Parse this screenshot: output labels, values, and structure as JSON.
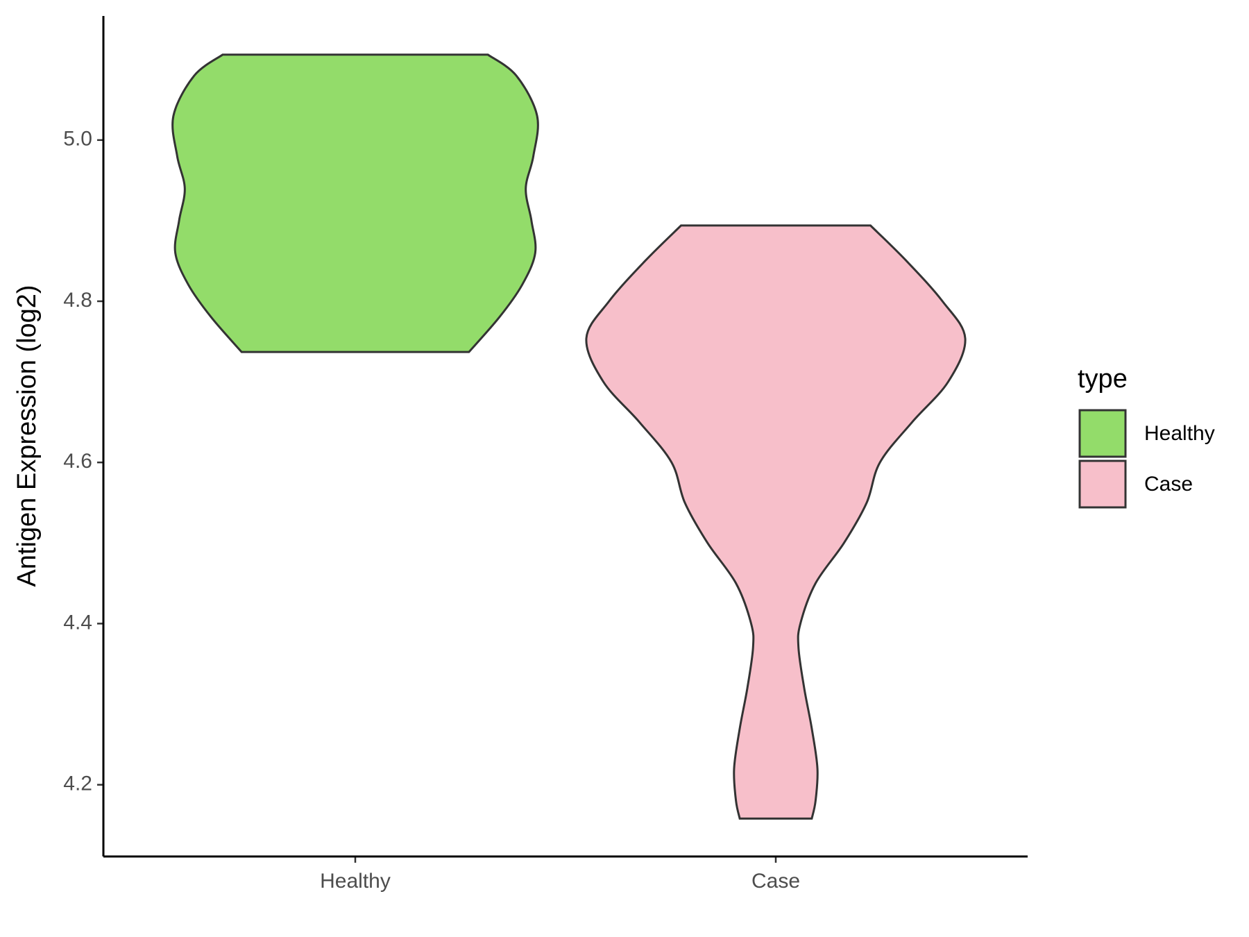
{
  "chart_data": {
    "type": "violin",
    "y_label": "Antigen Expression (log2)",
    "legend_title": "type",
    "categories": [
      "Healthy",
      "Case"
    ],
    "ylim": [
      4.111,
      5.154
    ],
    "yticks": [
      4.2,
      4.4,
      4.6,
      4.8,
      {
        "value": 5,
        "label": "5.0"
      }
    ],
    "series": [
      {
        "name": "Healthy",
        "color": "#93dc6a",
        "y": [
          5.106,
          5.08,
          5.03,
          4.98,
          4.94,
          4.9,
          4.86,
          4.82,
          4.78,
          4.737
        ],
        "density": [
          0.7,
          0.85,
          0.96,
          0.94,
          0.9,
          0.93,
          0.95,
          0.88,
          0.76,
          0.6
        ]
      },
      {
        "name": "Case",
        "color": "#f7bfca",
        "y": [
          4.894,
          4.85,
          4.8,
          4.754,
          4.7,
          4.65,
          4.6,
          4.55,
          4.5,
          4.45,
          4.4,
          4.37,
          4.32,
          4.27,
          4.22,
          4.18,
          4.158
        ],
        "density": [
          0.5,
          0.69,
          0.88,
          1.0,
          0.91,
          0.72,
          0.55,
          0.48,
          0.36,
          0.21,
          0.13,
          0.12,
          0.15,
          0.19,
          0.22,
          0.21,
          0.19
        ]
      }
    ]
  }
}
